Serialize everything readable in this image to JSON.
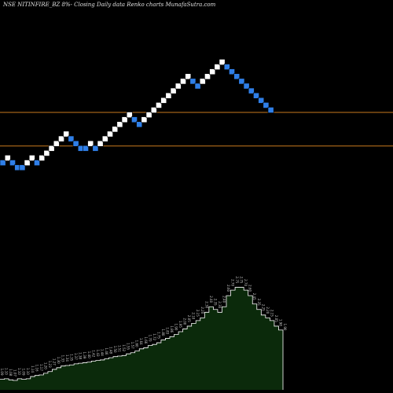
{
  "chart_data": {
    "type": "renko",
    "title": "NSE NITINFIRE_BZ 8%-  Closing Daily data  Renko  charts MunafaSutra.com",
    "colors": {
      "background": "#000000",
      "up_brick": "#ffffff",
      "down_brick": "#2f7fe8",
      "reference_line": "#c87a1e",
      "volume_fill": "#0b2a0b",
      "volume_line": "#ffffff"
    },
    "bricks": [
      {
        "level": 9,
        "dir": "down"
      },
      {
        "level": 10,
        "dir": "up"
      },
      {
        "level": 9,
        "dir": "down"
      },
      {
        "level": 8,
        "dir": "down"
      },
      {
        "level": 8,
        "dir": "down"
      },
      {
        "level": 9,
        "dir": "up"
      },
      {
        "level": 10,
        "dir": "up"
      },
      {
        "level": 9,
        "dir": "down"
      },
      {
        "level": 10,
        "dir": "up"
      },
      {
        "level": 11,
        "dir": "up"
      },
      {
        "level": 12,
        "dir": "up"
      },
      {
        "level": 13,
        "dir": "up"
      },
      {
        "level": 14,
        "dir": "up"
      },
      {
        "level": 15,
        "dir": "up"
      },
      {
        "level": 14,
        "dir": "down"
      },
      {
        "level": 13,
        "dir": "down"
      },
      {
        "level": 12,
        "dir": "down"
      },
      {
        "level": 12,
        "dir": "down"
      },
      {
        "level": 13,
        "dir": "up"
      },
      {
        "level": 12,
        "dir": "down"
      },
      {
        "level": 13,
        "dir": "up"
      },
      {
        "level": 14,
        "dir": "up"
      },
      {
        "level": 15,
        "dir": "up"
      },
      {
        "level": 16,
        "dir": "up"
      },
      {
        "level": 17,
        "dir": "up"
      },
      {
        "level": 18,
        "dir": "up"
      },
      {
        "level": 19,
        "dir": "up"
      },
      {
        "level": 18,
        "dir": "down"
      },
      {
        "level": 17,
        "dir": "down"
      },
      {
        "level": 18,
        "dir": "up"
      },
      {
        "level": 19,
        "dir": "up"
      },
      {
        "level": 20,
        "dir": "up"
      },
      {
        "level": 21,
        "dir": "up"
      },
      {
        "level": 22,
        "dir": "up"
      },
      {
        "level": 23,
        "dir": "up"
      },
      {
        "level": 24,
        "dir": "up"
      },
      {
        "level": 25,
        "dir": "up"
      },
      {
        "level": 26,
        "dir": "up"
      },
      {
        "level": 27,
        "dir": "up"
      },
      {
        "level": 26,
        "dir": "down"
      },
      {
        "level": 25,
        "dir": "down"
      },
      {
        "level": 26,
        "dir": "up"
      },
      {
        "level": 27,
        "dir": "up"
      },
      {
        "level": 28,
        "dir": "up"
      },
      {
        "level": 29,
        "dir": "up"
      },
      {
        "level": 30,
        "dir": "up"
      },
      {
        "level": 29,
        "dir": "down"
      },
      {
        "level": 28,
        "dir": "down"
      },
      {
        "level": 27,
        "dir": "down"
      },
      {
        "level": 26,
        "dir": "down"
      },
      {
        "level": 25,
        "dir": "down"
      },
      {
        "level": 24,
        "dir": "down"
      },
      {
        "level": 23,
        "dir": "down"
      },
      {
        "level": 22,
        "dir": "down"
      },
      {
        "level": 21,
        "dir": "down"
      },
      {
        "level": 20,
        "dir": "down"
      }
    ],
    "reference_levels": [
      19.5,
      12.5
    ],
    "volume_labels": [
      "1.09",
      "1.10",
      "1.08",
      "1.07",
      "1.10",
      "1.09",
      "1.10",
      "1.14",
      "1.16",
      "1.17",
      "1.20",
      "1.23",
      "1.27",
      "1.30",
      "1.33",
      "1.34",
      "1.35",
      "1.37",
      "1.38",
      "1.39",
      "1.40",
      "1.42",
      "1.43",
      "1.44",
      "1.46",
      "1.48",
      "1.50",
      "1.51",
      "1.52",
      "1.55",
      "1.57",
      "1.60",
      "1.64",
      "1.66",
      "1.70",
      "1.72",
      "1.75",
      "1.80",
      "1.83",
      "1.86",
      "1.90",
      "1.95",
      "2.00",
      "2.05",
      "2.10",
      "2.15",
      "2.20",
      "2.30",
      "2.40",
      "2.35",
      "2.30",
      "2.40",
      "2.60",
      "2.70",
      "2.75",
      "2.75",
      "2.70",
      "2.60",
      "2.45",
      "2.35",
      "2.25",
      "2.20",
      "2.15",
      "2.05",
      "1.98",
      "1.90"
    ],
    "volume_values": [
      1.09,
      1.1,
      1.08,
      1.07,
      1.1,
      1.09,
      1.1,
      1.14,
      1.16,
      1.17,
      1.2,
      1.23,
      1.27,
      1.3,
      1.33,
      1.34,
      1.35,
      1.37,
      1.38,
      1.39,
      1.4,
      1.42,
      1.43,
      1.44,
      1.46,
      1.48,
      1.5,
      1.51,
      1.52,
      1.55,
      1.57,
      1.6,
      1.64,
      1.66,
      1.7,
      1.72,
      1.75,
      1.8,
      1.83,
      1.86,
      1.9,
      1.95,
      2.0,
      2.05,
      2.1,
      2.15,
      2.2,
      2.3,
      2.4,
      2.35,
      2.3,
      2.4,
      2.6,
      2.7,
      2.75,
      2.75,
      2.7,
      2.6,
      2.45,
      2.35,
      2.25,
      2.2,
      2.15,
      2.05,
      1.98,
      1.9
    ],
    "volume_range": [
      0.9,
      2.9
    ]
  }
}
